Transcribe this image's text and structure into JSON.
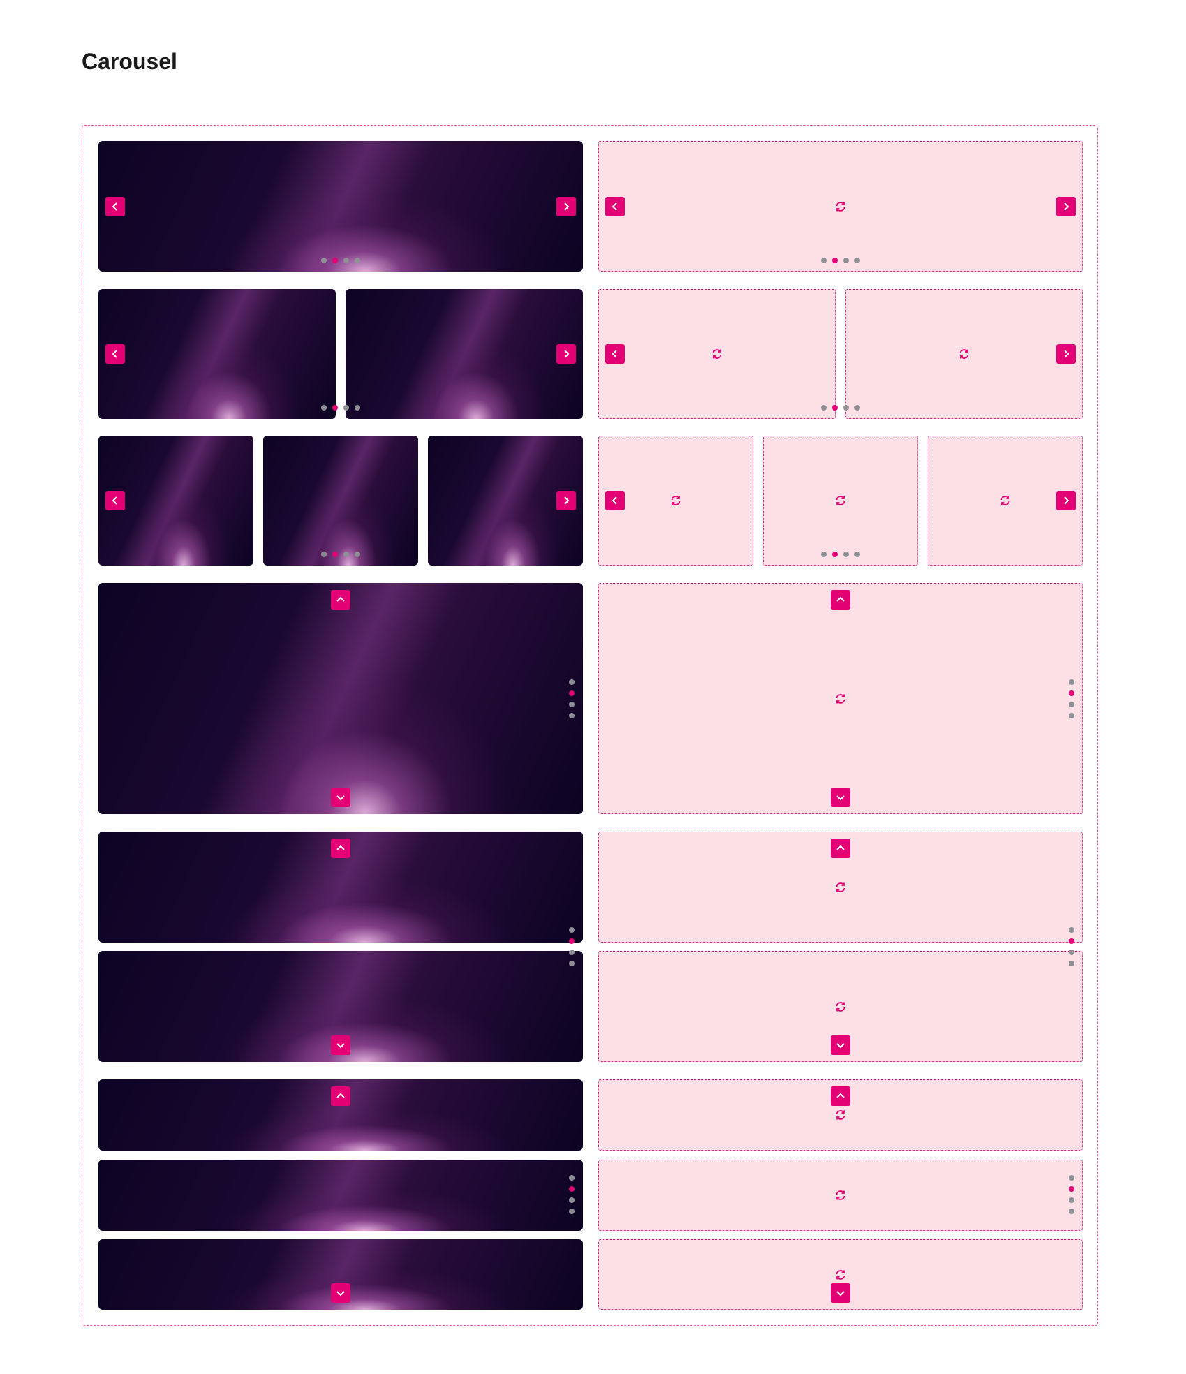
{
  "header": {
    "title": "Carousel"
  }
}
